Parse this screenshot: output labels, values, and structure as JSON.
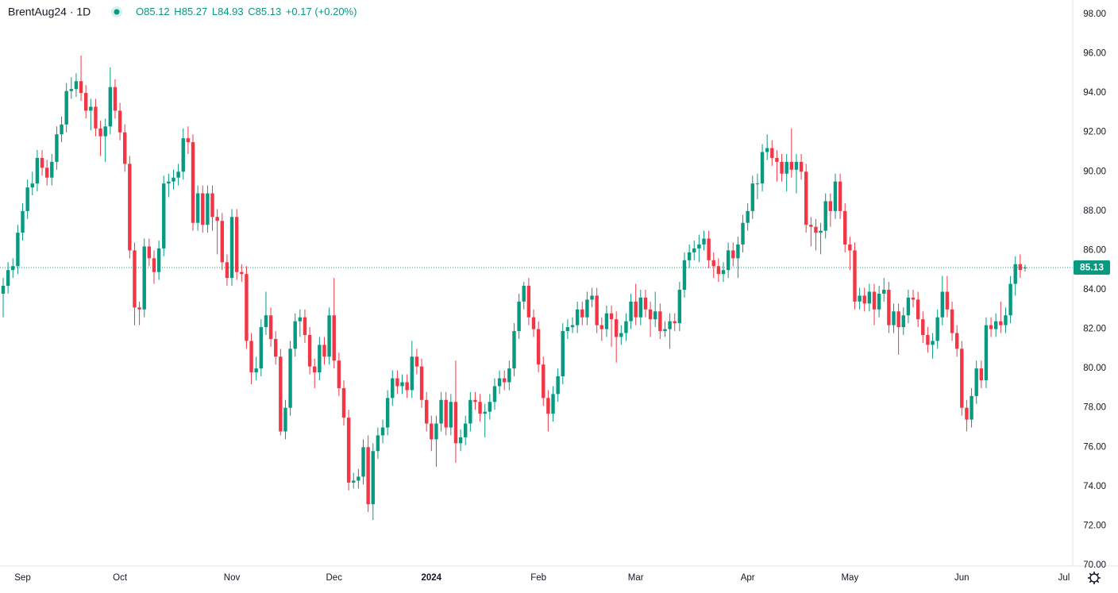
{
  "chart_data": {
    "type": "candlestick",
    "title": "BrentAug24 · 1D",
    "legend": {
      "labels": [
        "O",
        "H",
        "L",
        "C"
      ],
      "change": "+0.17 (+0.20%)"
    },
    "up_color": "#089981",
    "down_color": "#f23645",
    "grid": false,
    "ylim": [
      70,
      98
    ],
    "yticks": [
      {
        "value": 70,
        "label": "70.00"
      },
      {
        "value": 72,
        "label": "72.00"
      },
      {
        "value": 74,
        "label": "74.00"
      },
      {
        "value": 76,
        "label": "76.00"
      },
      {
        "value": 78,
        "label": "78.00"
      },
      {
        "value": 80,
        "label": "80.00"
      },
      {
        "value": 82,
        "label": "82.00"
      },
      {
        "value": 84,
        "label": "84.00"
      },
      {
        "value": 86,
        "label": "86.00"
      },
      {
        "value": 88,
        "label": "88.00"
      },
      {
        "value": 90,
        "label": "90.00"
      },
      {
        "value": 92,
        "label": "92.00"
      },
      {
        "value": 94,
        "label": "94.00"
      },
      {
        "value": 96,
        "label": "96.00"
      },
      {
        "value": 98,
        "label": "98.00"
      }
    ],
    "categories": [
      null,
      null,
      null,
      null,
      "Sep",
      null,
      null,
      null,
      null,
      null,
      null,
      null,
      null,
      null,
      null,
      null,
      null,
      null,
      null,
      null,
      null,
      null,
      null,
      null,
      "Oct",
      null,
      null,
      null,
      null,
      null,
      null,
      null,
      null,
      null,
      null,
      null,
      null,
      null,
      null,
      null,
      null,
      null,
      null,
      null,
      null,
      null,
      null,
      "Nov",
      null,
      null,
      null,
      null,
      null,
      null,
      null,
      null,
      null,
      null,
      null,
      null,
      null,
      null,
      null,
      null,
      null,
      null,
      null,
      null,
      "Dec",
      null,
      null,
      null,
      null,
      null,
      null,
      null,
      null,
      null,
      null,
      null,
      null,
      null,
      null,
      null,
      null,
      null,
      null,
      null,
      "2024",
      null,
      null,
      null,
      null,
      null,
      null,
      null,
      null,
      null,
      null,
      null,
      null,
      null,
      null,
      null,
      null,
      null,
      null,
      null,
      null,
      null,
      "Feb",
      null,
      null,
      null,
      null,
      null,
      null,
      null,
      null,
      null,
      null,
      null,
      null,
      null,
      null,
      null,
      null,
      null,
      null,
      null,
      "Mar",
      null,
      null,
      null,
      null,
      null,
      null,
      null,
      null,
      null,
      null,
      null,
      null,
      null,
      null,
      null,
      null,
      null,
      null,
      null,
      null,
      null,
      null,
      "Apr",
      null,
      null,
      null,
      null,
      null,
      null,
      null,
      null,
      null,
      null,
      null,
      null,
      null,
      null,
      null,
      null,
      null,
      null,
      null,
      null,
      "May",
      null,
      null,
      null,
      null,
      null,
      null,
      null,
      null,
      null,
      null,
      null,
      null,
      null,
      null,
      null,
      null,
      null,
      null,
      null,
      null,
      null,
      null,
      "Jun",
      null,
      null,
      null,
      null,
      null,
      null,
      null,
      null,
      null,
      null,
      null,
      null,
      null,
      null,
      null,
      null,
      null,
      null,
      null,
      null,
      "Jul"
    ],
    "open": [
      83.8,
      84.2,
      85.0,
      85.2,
      86.9,
      88.0,
      89.2,
      89.4,
      90.7,
      90.2,
      89.7,
      90.5,
      91.9,
      92.4,
      94.1,
      94.2,
      94.6,
      94.0,
      93.1,
      93.3,
      92.2,
      91.8,
      92.3,
      94.3,
      93.1,
      92.0,
      90.4,
      86.0,
      83.1,
      83.0,
      86.2,
      85.6,
      84.9,
      86.1,
      89.4,
      89.5,
      89.7,
      90.0,
      91.7,
      91.5,
      87.4,
      88.9,
      87.3,
      88.9,
      87.7,
      87.5,
      85.4,
      84.6,
      87.7,
      84.9,
      84.8,
      81.4,
      79.8,
      80.0,
      82.1,
      82.7,
      81.5,
      80.6,
      76.8,
      78.0,
      81.0,
      82.4,
      82.6,
      81.7,
      80.1,
      79.8,
      81.2,
      80.6,
      82.7,
      80.4,
      79.0,
      77.5,
      74.2,
      74.3,
      74.5,
      76.0,
      73.1,
      75.8,
      76.6,
      77.0,
      78.5,
      79.5,
      79.1,
      79.3,
      78.9,
      80.6,
      80.1,
      78.4,
      77.2,
      76.4,
      77.2,
      78.4,
      77.0,
      78.3,
      76.2,
      76.5,
      77.2,
      78.4,
      78.3,
      77.7,
      77.8,
      78.3,
      79.1,
      79.5,
      79.3,
      80.0,
      81.9,
      83.4,
      84.2,
      82.6,
      82.0,
      80.2,
      78.5,
      77.7,
      78.7,
      79.6,
      81.9,
      82.1,
      82.2,
      83.0,
      82.6,
      83.5,
      83.7,
      82.2,
      82.0,
      82.8,
      82.5,
      81.6,
      81.8,
      82.4,
      83.4,
      82.6,
      83.6,
      83.0,
      82.5,
      82.9,
      81.9,
      82.0,
      82.4,
      82.3,
      84.0,
      85.5,
      85.9,
      86.1,
      86.3,
      86.6,
      85.5,
      85.2,
      84.8,
      85.0,
      86.0,
      85.6,
      86.3,
      87.4,
      88.0,
      89.4,
      89.4,
      91.0,
      91.2,
      90.7,
      90.5,
      89.9,
      90.5,
      90.1,
      90.5,
      90.0,
      87.3,
      87.2,
      86.9,
      87.0,
      88.5,
      88.0,
      89.5,
      88.0,
      86.3,
      86.0,
      83.4,
      83.7,
      83.3,
      83.9,
      83.0,
      83.8,
      84.0,
      82.2,
      82.9,
      82.1,
      82.7,
      83.6,
      83.5,
      82.5,
      81.7,
      81.2,
      81.4,
      82.6,
      83.9,
      83.0,
      81.8,
      81.0,
      78.0,
      77.4,
      78.6,
      80.0,
      79.4,
      82.2,
      82.0,
      82.4,
      82.2,
      82.7,
      84.3,
      85.3,
      85.12,
      null,
      null,
      null,
      null,
      null,
      null,
      null,
      null
    ],
    "high": [
      84.6,
      85.4,
      85.6,
      87.3,
      88.4,
      89.6,
      90.0,
      91.1,
      91.1,
      90.6,
      90.9,
      92.3,
      92.8,
      94.5,
      94.8,
      95.0,
      95.9,
      94.4,
      93.7,
      93.7,
      92.6,
      92.7,
      95.3,
      94.7,
      93.5,
      92.4,
      90.8,
      86.4,
      83.4,
      86.6,
      86.6,
      86.0,
      86.5,
      89.8,
      89.9,
      90.1,
      90.4,
      92.2,
      92.3,
      91.9,
      89.3,
      89.3,
      89.3,
      89.3,
      88.1,
      87.9,
      85.8,
      88.1,
      88.1,
      85.3,
      85.2,
      81.8,
      80.6,
      82.5,
      83.9,
      83.1,
      81.9,
      81.0,
      78.4,
      81.4,
      82.8,
      83.0,
      83.0,
      82.1,
      80.5,
      81.6,
      81.6,
      83.1,
      84.6,
      80.8,
      79.4,
      77.9,
      74.7,
      74.9,
      76.4,
      76.6,
      76.2,
      77.0,
      77.4,
      78.9,
      79.9,
      79.9,
      79.7,
      79.7,
      81.4,
      81.0,
      80.5,
      78.8,
      77.6,
      77.6,
      78.8,
      78.8,
      78.7,
      80.4,
      76.9,
      77.6,
      78.8,
      78.8,
      78.7,
      78.2,
      78.7,
      79.5,
      79.9,
      79.9,
      80.4,
      82.3,
      83.8,
      84.4,
      84.6,
      83.0,
      82.4,
      80.6,
      78.9,
      79.1,
      80.0,
      82.3,
      82.5,
      82.6,
      83.4,
      83.4,
      83.9,
      84.1,
      84.1,
      82.6,
      83.2,
      83.2,
      82.9,
      82.2,
      82.8,
      83.8,
      84.3,
      84.0,
      84.0,
      83.4,
      83.9,
      83.3,
      82.4,
      82.8,
      82.8,
      84.4,
      85.9,
      86.3,
      86.5,
      86.8,
      87.0,
      87.0,
      85.9,
      85.6,
      85.4,
      86.4,
      86.4,
      86.7,
      87.8,
      88.4,
      89.8,
      89.9,
      91.4,
      91.9,
      91.6,
      91.1,
      90.9,
      90.9,
      92.2,
      90.9,
      90.9,
      90.4,
      87.7,
      87.6,
      87.4,
      88.9,
      88.9,
      89.9,
      89.9,
      88.4,
      86.7,
      86.4,
      84.1,
      84.1,
      84.3,
      84.3,
      84.2,
      84.6,
      84.4,
      83.3,
      83.3,
      83.1,
      84.0,
      84.0,
      83.9,
      82.9,
      82.1,
      81.8,
      83.0,
      84.7,
      84.7,
      83.4,
      82.2,
      81.4,
      78.4,
      79.0,
      80.4,
      80.4,
      82.6,
      82.6,
      82.8,
      83.4,
      83.1,
      84.7,
      85.7,
      85.8,
      85.27,
      null,
      null,
      null,
      null,
      null,
      null,
      null,
      null
    ],
    "low": [
      82.6,
      83.8,
      84.6,
      84.8,
      86.5,
      87.6,
      88.8,
      89.0,
      89.8,
      89.3,
      89.3,
      90.1,
      91.5,
      92.0,
      93.7,
      93.8,
      93.6,
      92.7,
      92.1,
      91.8,
      90.8,
      90.5,
      91.9,
      92.7,
      91.6,
      90.0,
      85.6,
      82.2,
      82.2,
      82.6,
      85.2,
      84.3,
      84.5,
      85.7,
      88.7,
      89.1,
      89.3,
      89.6,
      90.9,
      87.0,
      87.0,
      86.9,
      86.9,
      87.0,
      85.8,
      85.0,
      84.2,
      84.2,
      84.5,
      84.4,
      81.0,
      79.2,
      79.4,
      79.6,
      81.7,
      81.1,
      80.2,
      76.6,
      76.4,
      77.6,
      80.6,
      81.6,
      81.3,
      79.7,
      79.0,
      79.4,
      80.2,
      80.2,
      80.0,
      78.6,
      77.1,
      73.8,
      73.9,
      73.9,
      74.1,
      72.7,
      72.3,
      75.4,
      76.2,
      76.6,
      78.1,
      78.7,
      78.7,
      78.5,
      78.5,
      79.7,
      78.0,
      76.8,
      75.8,
      75.0,
      76.8,
      76.6,
      76.6,
      75.2,
      75.8,
      76.1,
      76.8,
      77.9,
      77.3,
      76.5,
      77.4,
      77.9,
      78.7,
      78.9,
      78.9,
      79.6,
      81.5,
      83.0,
      82.2,
      81.6,
      79.8,
      78.1,
      76.8,
      77.3,
      78.3,
      79.2,
      81.5,
      81.8,
      81.8,
      82.2,
      82.2,
      83.1,
      81.8,
      81.4,
      81.6,
      81.1,
      80.3,
      81.2,
      81.4,
      82.0,
      82.2,
      82.2,
      82.6,
      81.6,
      82.1,
      81.5,
      81.6,
      81.0,
      81.9,
      81.9,
      83.6,
      85.1,
      85.5,
      85.4,
      86.0,
      85.1,
      84.6,
      84.4,
      84.4,
      84.6,
      85.2,
      84.6,
      85.9,
      87.0,
      87.6,
      88.6,
      89.0,
      90.6,
      90.3,
      89.5,
      89.5,
      89.0,
      89.7,
      88.9,
      89.6,
      86.9,
      86.2,
      86.0,
      85.8,
      86.6,
      87.2,
      87.6,
      87.6,
      85.9,
      85.0,
      83.0,
      83.0,
      82.9,
      82.9,
      82.2,
      82.6,
      83.4,
      81.8,
      81.8,
      80.7,
      81.7,
      82.3,
      83.1,
      82.1,
      81.3,
      80.8,
      80.5,
      81.0,
      82.2,
      82.6,
      81.4,
      80.6,
      77.6,
      76.8,
      77.0,
      78.2,
      79.0,
      79.0,
      81.6,
      81.6,
      81.8,
      81.8,
      82.3,
      83.7,
      84.6,
      84.93,
      null,
      null,
      null,
      null,
      null,
      null,
      null,
      null
    ],
    "close": [
      84.2,
      85.0,
      85.2,
      86.9,
      88.0,
      89.2,
      89.4,
      90.7,
      90.2,
      89.7,
      90.5,
      91.9,
      92.4,
      94.1,
      94.2,
      94.6,
      94.0,
      93.1,
      93.3,
      92.2,
      91.8,
      92.3,
      94.3,
      93.1,
      92.0,
      90.4,
      86.0,
      83.1,
      83.0,
      86.2,
      85.6,
      84.9,
      86.1,
      89.4,
      89.5,
      89.7,
      90.0,
      91.7,
      91.5,
      87.4,
      88.9,
      87.3,
      88.9,
      87.7,
      87.5,
      85.4,
      84.6,
      87.7,
      84.9,
      84.8,
      81.4,
      79.8,
      80.0,
      82.1,
      82.7,
      81.5,
      80.6,
      76.8,
      78.0,
      81.0,
      82.4,
      82.6,
      81.7,
      80.1,
      79.8,
      81.2,
      80.6,
      82.7,
      80.4,
      79.0,
      77.5,
      74.2,
      74.3,
      74.5,
      76.0,
      73.1,
      75.8,
      76.6,
      77.0,
      78.5,
      79.5,
      79.1,
      79.3,
      78.9,
      80.6,
      80.1,
      78.4,
      77.2,
      76.4,
      77.2,
      78.4,
      77.0,
      78.3,
      76.2,
      76.5,
      77.2,
      78.4,
      78.3,
      77.7,
      77.8,
      78.3,
      79.1,
      79.5,
      79.3,
      80.0,
      81.9,
      83.4,
      84.2,
      82.6,
      82.0,
      80.2,
      78.5,
      77.7,
      78.7,
      79.6,
      81.9,
      82.1,
      82.2,
      83.0,
      82.6,
      83.5,
      83.7,
      82.2,
      82.0,
      82.8,
      82.5,
      81.6,
      81.8,
      82.4,
      83.4,
      82.6,
      83.6,
      83.0,
      82.5,
      82.9,
      81.9,
      82.0,
      82.4,
      82.3,
      84.0,
      85.5,
      85.9,
      86.1,
      86.3,
      86.6,
      85.5,
      85.2,
      84.8,
      85.0,
      86.0,
      85.6,
      86.3,
      87.4,
      88.0,
      89.4,
      89.4,
      91.0,
      91.2,
      90.7,
      90.5,
      89.9,
      90.5,
      90.1,
      90.5,
      90.0,
      87.3,
      87.2,
      86.9,
      87.0,
      88.5,
      88.0,
      89.5,
      88.0,
      86.3,
      86.0,
      83.4,
      83.7,
      83.3,
      83.9,
      83.0,
      83.8,
      84.0,
      82.2,
      82.9,
      82.1,
      82.7,
      83.6,
      83.5,
      82.5,
      81.7,
      81.2,
      81.4,
      82.6,
      83.9,
      83.0,
      81.8,
      81.0,
      78.0,
      77.4,
      78.6,
      80.0,
      79.4,
      82.2,
      82.0,
      82.4,
      82.2,
      82.7,
      84.3,
      85.3,
      85.0,
      85.13,
      null,
      null,
      null,
      null,
      null,
      null,
      null,
      null
    ]
  }
}
